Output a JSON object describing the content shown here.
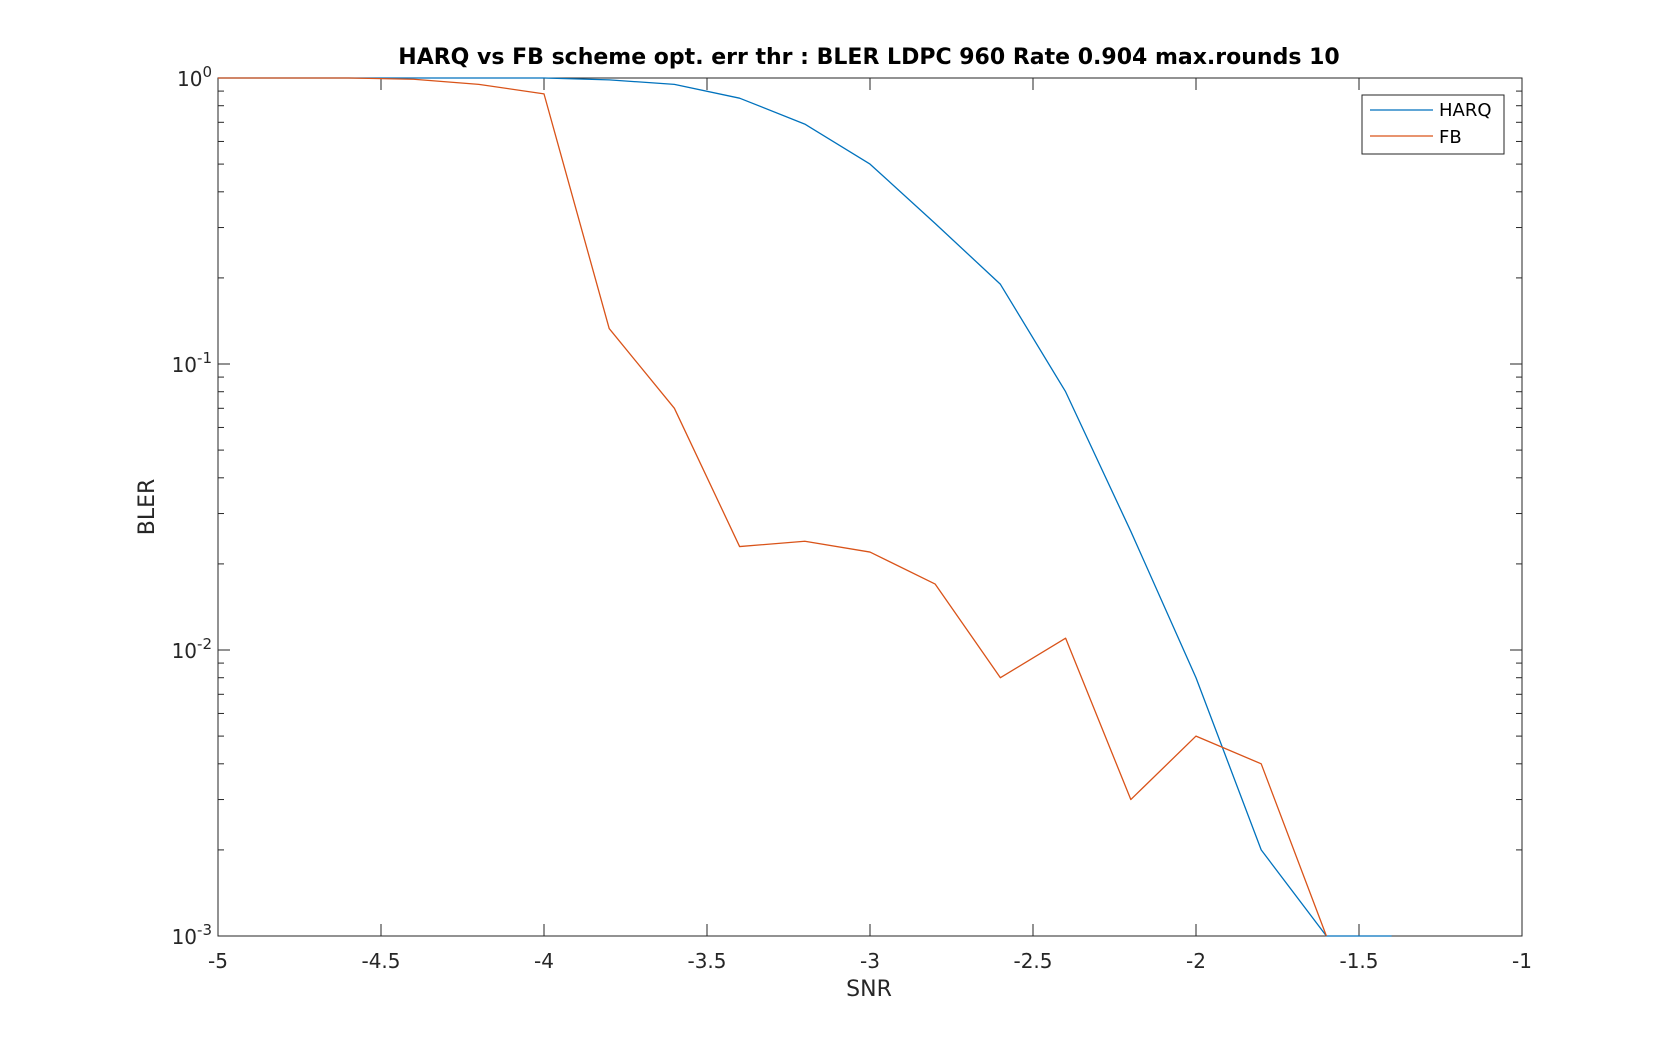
{
  "chart_data": {
    "type": "line",
    "title": "HARQ vs FB scheme opt. err thr : BLER LDPC 960 Rate 0.904 max.rounds 10",
    "xlabel": "SNR",
    "ylabel": "BLER",
    "xlim": [
      -5,
      -1
    ],
    "ylim": [
      0.001,
      1
    ],
    "yscale": "log",
    "grid": false,
    "legend_position": "top-right",
    "x_ticks": [
      -5,
      -4.5,
      -4,
      -3.5,
      -3,
      -2.5,
      -2,
      -1.5,
      -1
    ],
    "x_tick_labels": [
      "-5",
      "-4.5",
      "-4",
      "-3.5",
      "-3",
      "-2.5",
      "-2",
      "-1.5",
      "-1"
    ],
    "y_ticks": [
      {
        "value": 1,
        "base": "10",
        "exp": "0"
      },
      {
        "value": 0.1,
        "base": "10",
        "exp": "-1"
      },
      {
        "value": 0.01,
        "base": "10",
        "exp": "-2"
      },
      {
        "value": 0.001,
        "base": "10",
        "exp": "-3"
      }
    ],
    "series": [
      {
        "name": "HARQ",
        "color": "#0072BD",
        "x": [
          -5,
          -4.8,
          -4.6,
          -4.4,
          -4.2,
          -4.0,
          -3.8,
          -3.6,
          -3.4,
          -3.2,
          -3.0,
          -2.8,
          -2.6,
          -2.4,
          -2.2,
          -2.0,
          -1.8,
          -1.6,
          -1.4
        ],
        "y": [
          1,
          1,
          1,
          1,
          1,
          1,
          0.985,
          0.95,
          0.85,
          0.69,
          0.5,
          0.31,
          0.19,
          0.08,
          0.026,
          0.008,
          0.002,
          0.001,
          0.001
        ]
      },
      {
        "name": "FB",
        "color": "#D95319",
        "x": [
          -5,
          -4.8,
          -4.6,
          -4.4,
          -4.2,
          -4.0,
          -3.8,
          -3.6,
          -3.4,
          -3.2,
          -3.0,
          -2.8,
          -2.6,
          -2.4,
          -2.2,
          -2.0,
          -1.8,
          -1.6
        ],
        "y": [
          1,
          1,
          1,
          0.99,
          0.95,
          0.88,
          0.133,
          0.07,
          0.023,
          0.024,
          0.022,
          0.017,
          0.008,
          0.011,
          0.003,
          0.005,
          0.004,
          0.001
        ]
      }
    ]
  }
}
